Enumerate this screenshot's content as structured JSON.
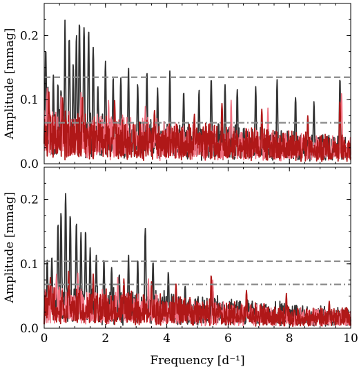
{
  "chart_data": [
    {
      "type": "line",
      "panel": "top",
      "xlabel": "",
      "ylabel": "Amplitude [mmag]",
      "xlim": [
        0,
        10
      ],
      "ylim": [
        0,
        0.25
      ],
      "xticks": [
        "0",
        "2",
        "4",
        "6",
        "8",
        "10"
      ],
      "yticks": [
        "0.0",
        "0.1",
        "0.2"
      ],
      "ytick_values": [
        0.0,
        0.1,
        0.2
      ],
      "thresholds": [
        {
          "style": "dashed",
          "value": 0.135
        },
        {
          "style": "dashdot",
          "value": 0.064
        }
      ],
      "colors": {
        "dark": "#333333",
        "light": "#f07080",
        "red": "#b01818",
        "threshold": "#8a8a8a"
      },
      "series": [
        {
          "style": "dark",
          "peaks": [
            [
              0.05,
              0.195
            ],
            [
              0.12,
              0.13
            ],
            [
              0.3,
              0.14
            ],
            [
              0.45,
              0.13
            ],
            [
              0.55,
              0.12
            ],
            [
              0.68,
              0.225
            ],
            [
              0.82,
              0.21
            ],
            [
              0.95,
              0.16
            ],
            [
              1.05,
              0.21
            ],
            [
              1.15,
              0.237
            ],
            [
              1.3,
              0.23
            ],
            [
              1.45,
              0.215
            ],
            [
              1.6,
              0.19
            ],
            [
              1.75,
              0.13
            ],
            [
              2.0,
              0.165
            ],
            [
              2.25,
              0.14
            ],
            [
              2.5,
              0.145
            ],
            [
              2.75,
              0.155
            ],
            [
              3.05,
              0.13
            ],
            [
              3.35,
              0.15
            ],
            [
              3.7,
              0.12
            ],
            [
              4.1,
              0.15
            ],
            [
              4.55,
              0.12
            ],
            [
              5.05,
              0.12
            ],
            [
              5.45,
              0.145
            ],
            [
              5.9,
              0.13
            ],
            [
              6.3,
              0.12
            ],
            [
              6.9,
              0.13
            ],
            [
              7.6,
              0.14
            ],
            [
              8.2,
              0.11
            ],
            [
              8.8,
              0.1
            ],
            [
              9.65,
              0.135
            ]
          ]
        },
        {
          "style": "light",
          "peaks": [
            [
              0.1,
              0.12
            ],
            [
              0.55,
              0.11
            ],
            [
              1.2,
              0.12
            ],
            [
              2.1,
              0.1
            ],
            [
              3.3,
              0.09
            ],
            [
              6.1,
              0.1
            ],
            [
              7.3,
              0.09
            ],
            [
              9.7,
              0.11
            ]
          ]
        },
        {
          "style": "red",
          "peaks": [
            [
              0.15,
              0.12
            ],
            [
              0.6,
              0.11
            ],
            [
              1.25,
              0.11
            ],
            [
              2.3,
              0.1
            ],
            [
              3.6,
              0.09
            ],
            [
              4.9,
              0.08
            ],
            [
              5.8,
              0.1
            ],
            [
              7.1,
              0.09
            ],
            [
              8.6,
              0.08
            ],
            [
              9.65,
              0.1
            ]
          ]
        }
      ]
    },
    {
      "type": "line",
      "panel": "bottom",
      "xlabel": "Frequency [d⁻¹]",
      "ylabel": "Amplitude [mmag]",
      "xlim": [
        0,
        10
      ],
      "ylim": [
        0,
        0.25
      ],
      "xticks": [
        "0",
        "2",
        "4",
        "6",
        "8",
        "10"
      ],
      "yticks": [
        "0.0",
        "0.1",
        "0.2"
      ],
      "ytick_values": [
        0.0,
        0.1,
        0.2
      ],
      "thresholds": [
        {
          "style": "dashed",
          "value": 0.104
        },
        {
          "style": "dashdot",
          "value": 0.068
        }
      ],
      "colors": {
        "dark": "#333333",
        "light": "#f07080",
        "red": "#b01818",
        "threshold": "#8a8a8a"
      },
      "series": [
        {
          "style": "dark",
          "peaks": [
            [
              0.1,
              0.11
            ],
            [
              0.25,
              0.12
            ],
            [
              0.45,
              0.17
            ],
            [
              0.55,
              0.19
            ],
            [
              0.7,
              0.225
            ],
            [
              0.85,
              0.19
            ],
            [
              1.05,
              0.17
            ],
            [
              1.2,
              0.16
            ],
            [
              1.35,
              0.155
            ],
            [
              1.5,
              0.13
            ],
            [
              1.7,
              0.12
            ],
            [
              1.95,
              0.11
            ],
            [
              2.2,
              0.1
            ],
            [
              2.45,
              0.09
            ],
            [
              2.75,
              0.12
            ],
            [
              3.05,
              0.11
            ],
            [
              3.3,
              0.165
            ],
            [
              3.55,
              0.11
            ],
            [
              4.05,
              0.09
            ],
            [
              4.6,
              0.07
            ],
            [
              5.5,
              0.07
            ]
          ]
        },
        {
          "style": "light",
          "peaks": [
            [
              0.4,
              0.09
            ],
            [
              1.1,
              0.09
            ],
            [
              2.4,
              0.08
            ],
            [
              3.4,
              0.08
            ],
            [
              5.5,
              0.075
            ]
          ]
        },
        {
          "style": "red",
          "peaks": [
            [
              0.2,
              0.08
            ],
            [
              0.8,
              0.09
            ],
            [
              1.6,
              0.085
            ],
            [
              2.6,
              0.08
            ],
            [
              3.5,
              0.075
            ],
            [
              4.3,
              0.07
            ],
            [
              5.45,
              0.085
            ],
            [
              6.6,
              0.06
            ],
            [
              7.9,
              0.055
            ],
            [
              9.3,
              0.045
            ]
          ]
        }
      ]
    }
  ]
}
